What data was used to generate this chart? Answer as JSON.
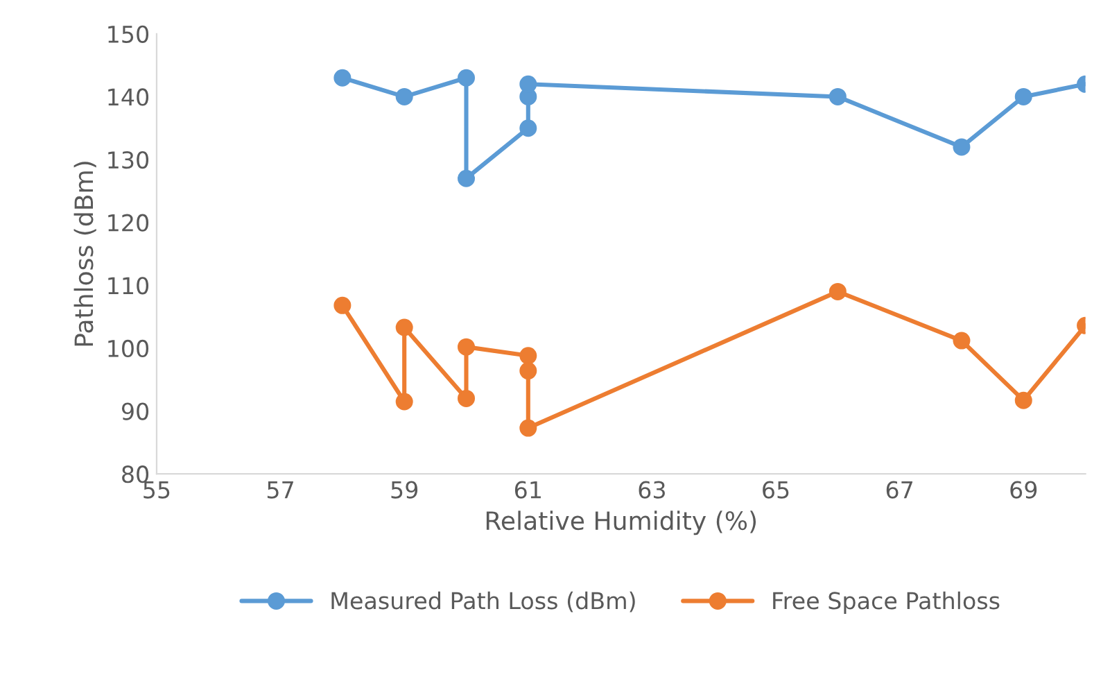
{
  "chart_data": {
    "type": "line",
    "xlabel": "Relative Humidity (%)",
    "ylabel": "Pathloss (dBm)",
    "xlim": [
      55,
      70
    ],
    "xticks": [
      55,
      57,
      59,
      61,
      63,
      65,
      67,
      69
    ],
    "ylim": [
      80,
      150
    ],
    "yticks": [
      80,
      90,
      100,
      110,
      120,
      130,
      140,
      150
    ],
    "grid": false,
    "legend": "bottom",
    "marker": "circle",
    "line_style": "solid",
    "series": [
      {
        "name": "Measured Path Loss (dBm)",
        "color": "#5b9bd5",
        "x": [
          58,
          59,
          60,
          60,
          61,
          61,
          61,
          66,
          68,
          69,
          70
        ],
        "values": [
          143,
          140,
          143,
          127,
          135,
          140,
          142,
          140,
          132,
          140,
          142
        ]
      },
      {
        "name": "Free Space Pathloss",
        "color": "#ed7d31",
        "x": [
          58,
          59,
          59,
          60,
          60,
          61,
          61,
          61,
          66,
          68,
          69,
          70
        ],
        "values": [
          106.8,
          91.5,
          103.3,
          92,
          100.2,
          98.8,
          96.4,
          87.3,
          109,
          101.2,
          91.7,
          103.6
        ]
      }
    ]
  }
}
